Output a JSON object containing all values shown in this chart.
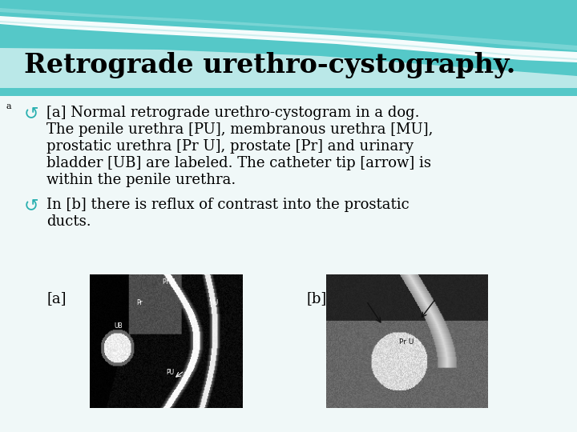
{
  "title": "Retrograde urethro-cystography.",
  "title_fontsize": 24,
  "title_color": "#000000",
  "title_font": "serif",
  "background_color": "#f0f8f8",
  "bullet_color": "#2ab0b0",
  "bullet_char": "↺",
  "superscript_a": "a",
  "text_fontsize": 13,
  "text_font": "serif",
  "text_color": "#000000",
  "bullet1_line1": "[a] Normal retrograde urethro-cystogram in a dog.",
  "bullet1_line2": "The penile urethra [PU], membranous urethra [MU],",
  "bullet1_line3": "prostatic urethra [Pr U], prostate [Pr] and urinary",
  "bullet1_line4": "bladder [UB] are labeled. The catheter tip [arrow] is",
  "bullet1_line5": "within the penile urethra.",
  "bullet2_line1": "In [b] there is reflux of contrast into the prostatic",
  "bullet2_line2": "ducts.",
  "label_a": "[a]",
  "label_b": "[b]"
}
